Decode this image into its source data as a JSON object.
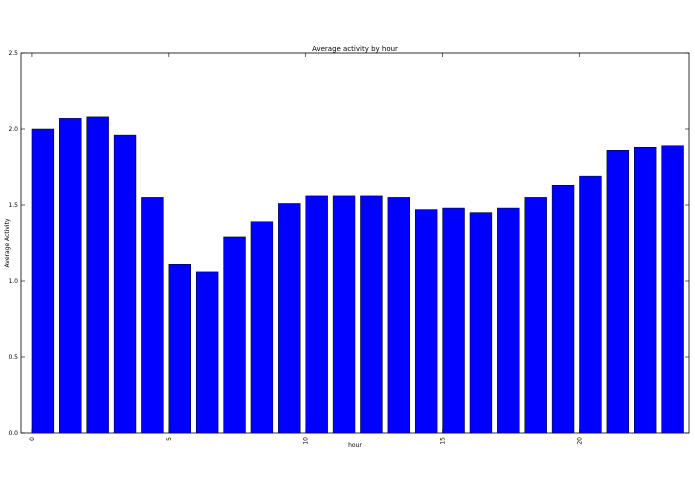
{
  "chart_data": {
    "type": "bar",
    "title": "Average activity by hour",
    "xlabel": "hour",
    "ylabel": "Average Activity",
    "x": [
      0,
      1,
      2,
      3,
      4,
      5,
      6,
      7,
      8,
      9,
      10,
      11,
      12,
      13,
      14,
      15,
      16,
      17,
      18,
      19,
      20,
      21,
      22,
      23
    ],
    "values": [
      2.0,
      2.07,
      2.08,
      1.96,
      1.55,
      1.11,
      1.06,
      1.29,
      1.39,
      1.51,
      1.56,
      1.56,
      1.56,
      1.55,
      1.47,
      1.48,
      1.45,
      1.48,
      1.55,
      1.63,
      1.69,
      1.86,
      1.88,
      1.89
    ],
    "xticks": [
      0,
      5,
      10,
      15,
      20
    ],
    "xtick_labels": [
      "0",
      "5",
      "10",
      "15",
      "20"
    ],
    "xlim": [
      -0.4,
      24
    ],
    "ylim": [
      0,
      2.5
    ],
    "yticks": [
      0.0,
      0.5,
      1.0,
      1.5,
      2.0,
      2.5
    ],
    "ytick_labels": [
      "0.0",
      "0.5",
      "1.0",
      "1.5",
      "2.0",
      "2.5"
    ],
    "bar_color": "#0000ff",
    "grid": false,
    "legend": "none"
  }
}
